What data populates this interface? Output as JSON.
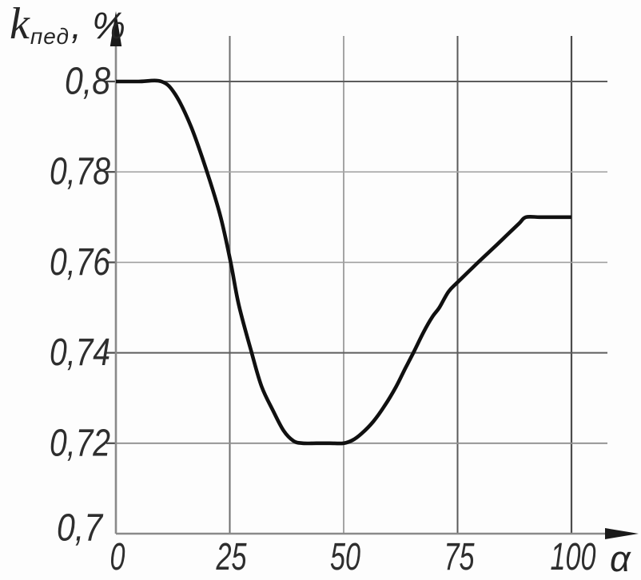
{
  "figure": {
    "background": "#fdfdfd",
    "y_axis_label": {
      "base": "k",
      "subscript": "пед",
      "suffix": ", %"
    },
    "x_axis_label": "α"
  },
  "chart_data": {
    "type": "line",
    "title": "",
    "xlabel": "α",
    "ylabel": "k пед, %",
    "xlim": [
      0,
      100
    ],
    "ylim": [
      0.7,
      0.8
    ],
    "grid": true,
    "legend": "none",
    "x_ticks": [
      {
        "value": 0,
        "label": "0"
      },
      {
        "value": 25,
        "label": "25"
      },
      {
        "value": 50,
        "label": "50"
      },
      {
        "value": 75,
        "label": "75"
      },
      {
        "value": 100,
        "label": "100"
      }
    ],
    "y_ticks": [
      {
        "value": 0.8,
        "label": "0,8"
      },
      {
        "value": 0.78,
        "label": "0,78"
      },
      {
        "value": 0.76,
        "label": "0,76"
      },
      {
        "value": 0.74,
        "label": "0,74"
      },
      {
        "value": 0.72,
        "label": "0,72"
      },
      {
        "value": 0.7,
        "label": "0,7"
      }
    ],
    "x_gridlines": [
      {
        "value": 25,
        "color": "#6e6e6e",
        "width": 2
      },
      {
        "value": 50,
        "color": "#9b9b9b",
        "width": 1.8
      },
      {
        "value": 75,
        "color": "#5a5a5a",
        "width": 2
      },
      {
        "value": 100,
        "color": "#4c4c4c",
        "width": 2.2
      }
    ],
    "y_gridlines": [
      {
        "value": 0.8,
        "color": "#5c5c5c",
        "width": 2
      },
      {
        "value": 0.78,
        "color": "#a6a6a6",
        "width": 1.6
      },
      {
        "value": 0.76,
        "color": "#a0a0a0",
        "width": 1.6
      },
      {
        "value": 0.74,
        "color": "#5e5e5e",
        "width": 2
      },
      {
        "value": 0.72,
        "color": "#8f8f8f",
        "width": 1.8
      }
    ],
    "axis_color": "#8a8a8a",
    "arrow_color": "#1a1a1a",
    "tick_mark_color": "#4a4a4a",
    "series": [
      {
        "name": "k_ped",
        "color": "#101010",
        "width": 4.6,
        "points": [
          [
            0,
            0.8
          ],
          [
            5,
            0.8
          ],
          [
            10,
            0.8
          ],
          [
            13,
            0.7972
          ],
          [
            16.5,
            0.79
          ],
          [
            20,
            0.78
          ],
          [
            23,
            0.77
          ],
          [
            25.2,
            0.76
          ],
          [
            27,
            0.7505
          ],
          [
            29.8,
            0.74
          ],
          [
            32,
            0.7325
          ],
          [
            34.5,
            0.7272
          ],
          [
            36.8,
            0.7228
          ],
          [
            39,
            0.7205
          ],
          [
            41,
            0.72
          ],
          [
            44,
            0.72
          ],
          [
            47,
            0.72
          ],
          [
            50,
            0.72
          ],
          [
            52,
            0.7207
          ],
          [
            54,
            0.7222
          ],
          [
            56.5,
            0.7248
          ],
          [
            59,
            0.7283
          ],
          [
            61.5,
            0.7325
          ],
          [
            63.5,
            0.7365
          ],
          [
            65.3,
            0.74
          ],
          [
            67.5,
            0.7445
          ],
          [
            69.5,
            0.748
          ],
          [
            71,
            0.75
          ],
          [
            73,
            0.7535
          ],
          [
            75,
            0.7556
          ],
          [
            79.5,
            0.76
          ],
          [
            83,
            0.7633
          ],
          [
            86,
            0.7662
          ],
          [
            88.5,
            0.7686
          ],
          [
            90,
            0.77
          ],
          [
            93,
            0.77
          ],
          [
            96.5,
            0.77
          ],
          [
            100,
            0.77
          ]
        ]
      }
    ]
  }
}
